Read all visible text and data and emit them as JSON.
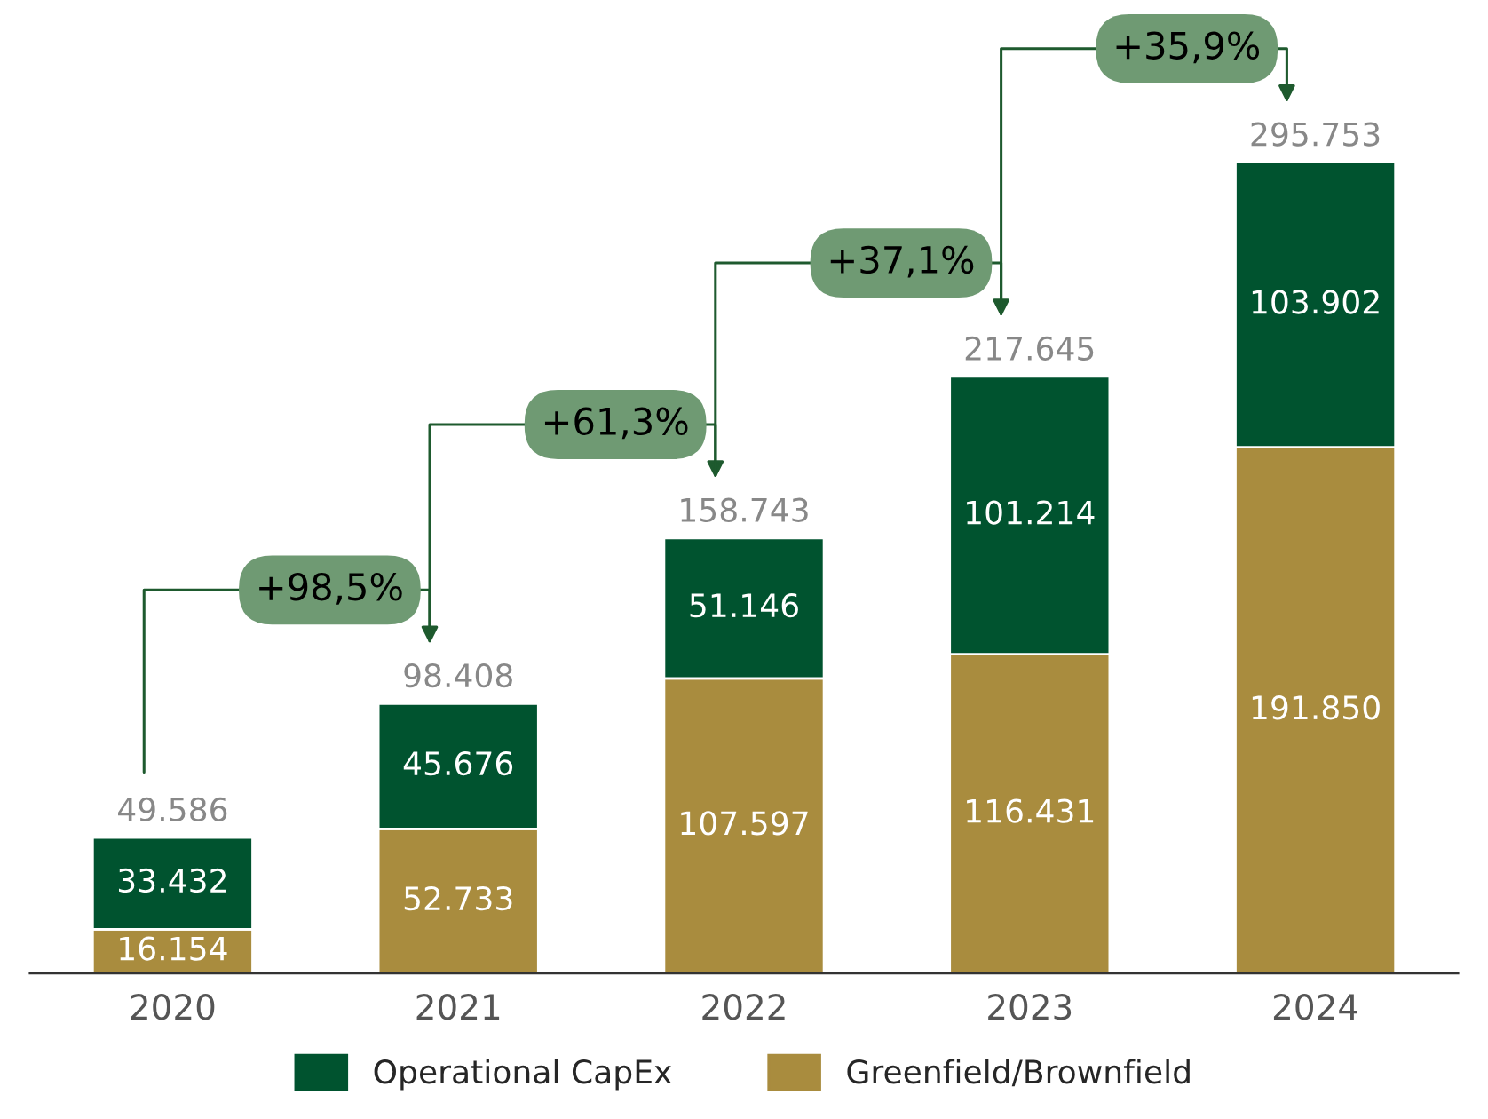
{
  "chart_data": {
    "type": "bar",
    "stacked": true,
    "categories": [
      "2020",
      "2021",
      "2022",
      "2023",
      "2024"
    ],
    "series": [
      {
        "name": "Greenfield/Brownfield",
        "color": "#a98c3e",
        "values": [
          16154,
          52733,
          107597,
          116431,
          191850
        ],
        "value_labels": [
          "16.154",
          "52.733",
          "107.597",
          "116.431",
          "191.850"
        ]
      },
      {
        "name": "Operational CapEx",
        "color": "#00532f",
        "values": [
          33432,
          45676,
          51146,
          101214,
          103902
        ],
        "value_labels": [
          "33.432",
          "45.676",
          "51.146",
          "101.214",
          "103.902"
        ]
      }
    ],
    "totals": [
      "49.586",
      "98.408",
      "158.743",
      "217.645",
      "295.753"
    ],
    "annotations": [
      "+98,5%",
      "+61,3%",
      "+37,1%",
      "+35,9%"
    ],
    "legend": "bottom",
    "grid": false
  }
}
